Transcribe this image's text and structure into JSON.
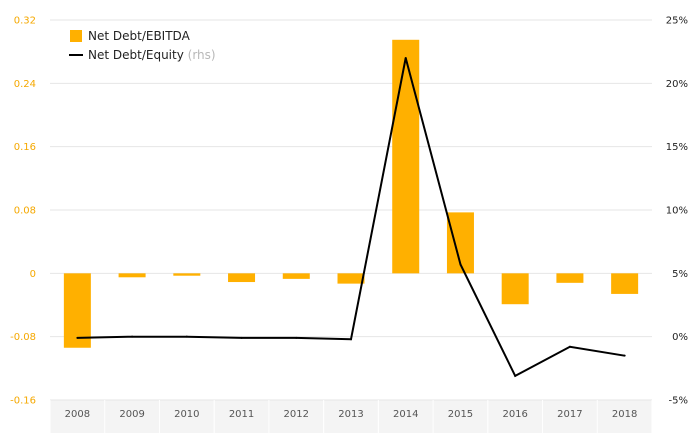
{
  "colors": {
    "bar": "#ffb000",
    "line": "#000000",
    "left_axis_text": "#f5a800",
    "grid": "#e6e6e6",
    "x_band": "#f4f4f4"
  },
  "chart_data": {
    "type": "bar",
    "categories": [
      "2008",
      "2009",
      "2010",
      "2011",
      "2012",
      "2013",
      "2014",
      "2015",
      "2016",
      "2017",
      "2018"
    ],
    "series": [
      {
        "name": "Net Debt/EBITDA",
        "type": "bar",
        "axis": "left",
        "values": [
          -0.094,
          -0.005,
          -0.003,
          -0.011,
          -0.007,
          -0.013,
          0.295,
          0.077,
          -0.039,
          -0.012,
          -0.026
        ]
      },
      {
        "name": "Net Debt/Equity",
        "name_suffix": "(rhs)",
        "type": "line",
        "axis": "right",
        "values": [
          -0.1,
          0.0,
          0.0,
          -0.1,
          -0.1,
          -0.2,
          22.0,
          5.7,
          -3.1,
          -0.8,
          -1.5
        ]
      }
    ],
    "y_left": {
      "ylim": [
        -0.16,
        0.32
      ],
      "ticks": [
        "0.32",
        "0.24",
        "0.16",
        "0.08",
        "0",
        "-0.08",
        "-0.16"
      ]
    },
    "y_right": {
      "ylim": [
        -5,
        25
      ],
      "ticks": [
        "25%",
        "20%",
        "15%",
        "10%",
        "5%",
        "0%",
        "-5%"
      ]
    },
    "grid": true,
    "legend_position": "top-left"
  }
}
